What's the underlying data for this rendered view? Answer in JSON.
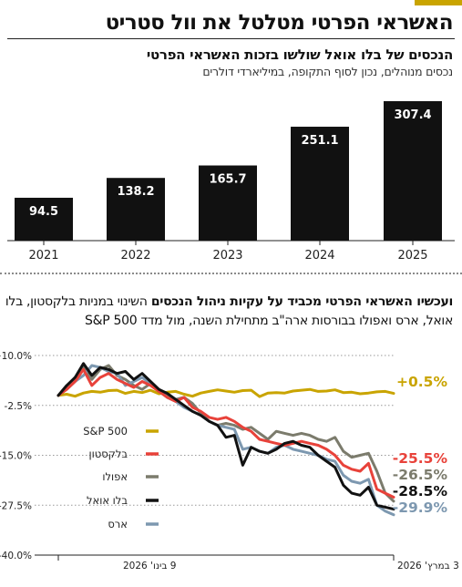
{
  "headline": "האשראי הפרטי מטלטל את וול סטריט",
  "chart_data": [
    {
      "type": "bar",
      "title": "הנכסים של בלו אואל שולשו בזכות האשראי הפרטי",
      "subtitle": "נכסים מנוהלים, נכון לסוף התקופה, במיליארדי דולרים",
      "categories": [
        "2021",
        "2022",
        "2023",
        "2024",
        "2025"
      ],
      "values": [
        94.5,
        138.2,
        165.7,
        251.1,
        307.4
      ],
      "value_labels": [
        "94.5",
        "138.2",
        "165.7",
        "251.1",
        "307.4"
      ],
      "ylim": [
        0,
        307.4
      ],
      "bar_color": "#111111",
      "label_color": "#ffffff"
    },
    {
      "type": "line",
      "title_bold": "ועכשיו האשראי הפרטי מכביד על עקיות ניהול הנכסים",
      "title_rest": " השינוי במניות בלקסטון, בלו",
      "title_line2": "אואל, ארס ואפולו בבורסות ארה\"ב מתחילת השנה, מול מדד S&P 500",
      "ylim": [
        -40,
        10
      ],
      "y_ticks": [
        10,
        -2.5,
        -15,
        -27.5,
        -40
      ],
      "y_tick_labels": [
        "+10.0%",
        "-2.5%",
        "-15.0%",
        "-27.5%",
        "-40.0%"
      ],
      "x_range": [
        "2026-01-09",
        "2026-03-03"
      ],
      "x_tick_labels": [
        "9 בינו' 2026",
        "3 במרץ' 2026"
      ],
      "grid": true,
      "legend_placement": "left",
      "series": [
        {
          "name": "S&P 500",
          "color": "#c9a400",
          "final_label": "+0.5%",
          "values": [
            0,
            0.3,
            -0.2,
            0.6,
            1.0,
            0.8,
            1.2,
            1.3,
            0.5,
            1.0,
            0.7,
            1.3,
            0.4,
            0.8,
            1.0,
            0.3,
            -0.2,
            0.6,
            1.0,
            1.4,
            1.1,
            0.8,
            1.2,
            1.3,
            -0.3,
            0.6,
            0.7,
            0.6,
            1.1,
            1.3,
            1.5,
            1.0,
            1.1,
            1.4,
            0.7,
            0.8,
            0.4,
            0.6,
            0.9,
            1.0,
            0.5
          ]
        },
        {
          "name": "בלקסטון",
          "color": "#e8423a",
          "final_label": "-25.5%",
          "values": [
            0,
            1.5,
            3.5,
            6.5,
            2.5,
            4.5,
            5.5,
            4.0,
            3.0,
            2.0,
            3.5,
            2.5,
            1.0,
            -0.5,
            -1.5,
            -0.5,
            -3.0,
            -4.0,
            -5.5,
            -6.0,
            -5.5,
            -6.5,
            -8.0,
            -9.0,
            -11.0,
            -11.5,
            -12.0,
            -12.5,
            -12.0,
            -11.5,
            -12.0,
            -12.5,
            -13.5,
            -15.0,
            -17.5,
            -18.5,
            -19.0,
            -17.0,
            -23.5,
            -24.5,
            -25.5
          ]
        },
        {
          "name": "אפולו",
          "color": "#7b7b6c",
          "final_label": "-26.5%",
          "values": [
            0,
            2.0,
            4.5,
            7.0,
            4.0,
            6.5,
            7.5,
            5.0,
            4.0,
            2.5,
            1.5,
            3.0,
            1.5,
            0.0,
            -1.0,
            -0.5,
            -2.0,
            -4.5,
            -6.5,
            -7.5,
            -7.0,
            -7.5,
            -8.5,
            -8.0,
            -9.5,
            -11.0,
            -9.0,
            -9.5,
            -10.0,
            -9.5,
            -10.0,
            -11.0,
            -11.5,
            -10.5,
            -14.0,
            -15.5,
            -15.0,
            -14.5,
            -19.0,
            -24.5,
            -26.5
          ]
        },
        {
          "name": "בלו אואל",
          "color": "#111111",
          "final_label": "-28.5%",
          "values": [
            0,
            2.5,
            4.5,
            8.0,
            5.0,
            7.0,
            6.5,
            5.5,
            6.0,
            4.0,
            5.5,
            3.5,
            1.5,
            0.5,
            -1.0,
            -2.5,
            -4.0,
            -5.0,
            -6.5,
            -7.5,
            -10.5,
            -10.0,
            -17.5,
            -13.0,
            -14.0,
            -14.5,
            -13.5,
            -12.0,
            -11.5,
            -12.5,
            -13.0,
            -15.0,
            -16.5,
            -18.0,
            -22.5,
            -24.5,
            -25.0,
            -23.0,
            -27.5,
            -28.0,
            -28.5
          ]
        },
        {
          "name": "ארס",
          "color": "#7d98b0",
          "final_label": "-29.9%",
          "values": [
            0,
            1.5,
            3.5,
            5.0,
            7.5,
            7.0,
            6.0,
            5.5,
            2.5,
            3.5,
            4.5,
            3.0,
            1.5,
            -0.5,
            -1.5,
            -3.0,
            -4.0,
            -5.0,
            -6.5,
            -7.5,
            -8.0,
            -8.5,
            -13.5,
            -13.0,
            -14.0,
            -14.5,
            -13.0,
            -12.5,
            -13.5,
            -14.0,
            -14.5,
            -15.0,
            -16.0,
            -16.5,
            -20.0,
            -21.5,
            -22.0,
            -21.0,
            -27.5,
            -29.0,
            -29.9
          ]
        }
      ]
    }
  ]
}
